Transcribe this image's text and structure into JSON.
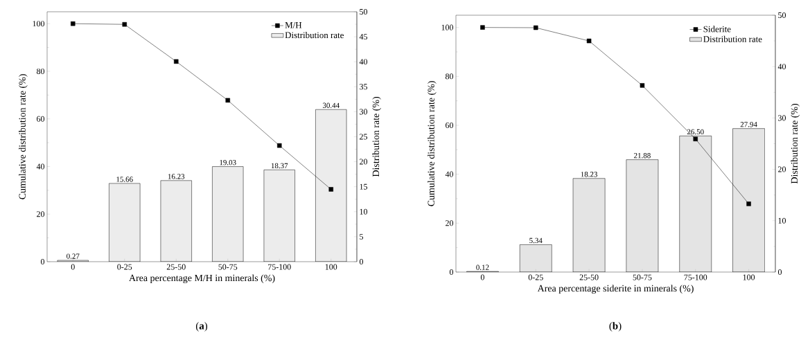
{
  "chart_data": [
    {
      "type": "bar",
      "xlabel": "Area percentage M/H in minerals (%)",
      "ylabel": "Cumulative distribution rate (%)",
      "y2label": "Distribution rate (%)",
      "categories": [
        "0",
        "0-25",
        "25-50",
        "50-75",
        "75-100",
        "100"
      ],
      "series": [
        {
          "name": "M/H",
          "type": "line",
          "color": "#000000",
          "marker": "square",
          "line_style": "solid",
          "values": [
            100,
            99.7,
            84.1,
            67.8,
            48.8,
            30.4
          ]
        },
        {
          "name": "Distribution rate",
          "axis": "y2",
          "color": "#ececec",
          "values": [
            0.27,
            15.66,
            16.23,
            19.03,
            18.37,
            30.44
          ],
          "value_labels": [
            "0.27",
            "15.66",
            "16.23",
            "19.03",
            "18.37",
            "30.44"
          ]
        }
      ],
      "ylim": [
        0,
        105
      ],
      "yticks": [
        0,
        20,
        40,
        60,
        80,
        100
      ],
      "y2lim": [
        0,
        50
      ],
      "y2ticks": [
        0,
        5,
        10,
        15,
        20,
        25,
        30,
        35,
        40,
        45,
        50
      ],
      "legend": "top right",
      "annotations": [
        "(**a**)"
      ]
    },
    {
      "type": "bar",
      "xlabel": "Area percentage siderite in minerals (%)",
      "ylabel": "Cumulative distribution rate (%)",
      "y2label": "Distribution rate (%)",
      "categories": [
        "0",
        "0-25",
        "25-50",
        "50-75",
        "75-100",
        "100"
      ],
      "series": [
        {
          "name": "Siderite",
          "type": "line",
          "color": "#000000",
          "marker": "square",
          "line_style": "solid",
          "values": [
            100,
            99.9,
            94.5,
            76.3,
            54.4,
            27.9
          ]
        },
        {
          "name": "Distribution rate",
          "axis": "y2",
          "color": "#e4e4e4",
          "values": [
            0.12,
            5.34,
            18.23,
            21.88,
            26.5,
            27.94
          ],
          "value_labels": [
            "0.12",
            "5.34",
            "18.23",
            "21.88",
            "26.50",
            "27.94"
          ]
        }
      ],
      "ylim": [
        0,
        105
      ],
      "yticks": [
        0,
        20,
        40,
        60,
        80,
        100
      ],
      "y2lim": [
        0,
        50
      ],
      "y2ticks": [
        0,
        10,
        20,
        30,
        40,
        50
      ],
      "legend": "top right",
      "annotations": [
        "(**b**)"
      ]
    }
  ]
}
